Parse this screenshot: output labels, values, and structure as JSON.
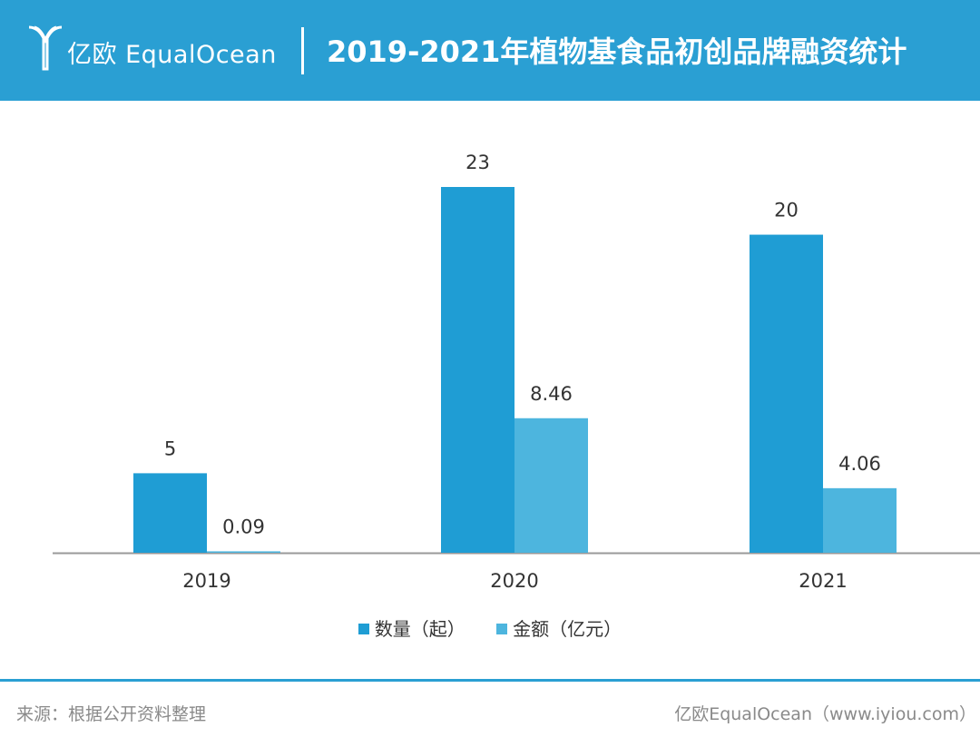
{
  "header": {
    "logo_text": "亿欧 EqualOcean",
    "title": "2019-2021年植物基食品初创品牌融资统计"
  },
  "colors": {
    "header_bg": "#2a9fd3",
    "series_count": "#1f9dd4",
    "series_amount": "#4db5de",
    "axis": "#999999"
  },
  "chart_data": {
    "type": "bar",
    "title": "2019-2021年植物基食品初创品牌融资统计",
    "categories": [
      "2019",
      "2020",
      "2021"
    ],
    "series": [
      {
        "name": "数量（起）",
        "values": [
          5,
          23,
          20
        ],
        "labels": [
          "5",
          "23",
          "20"
        ]
      },
      {
        "name": "金额（亿元）",
        "values": [
          0.09,
          8.46,
          4.06
        ],
        "labels": [
          "0.09",
          "8.46",
          "4.06"
        ]
      }
    ],
    "xlabel": "",
    "ylabel": "",
    "ylim": [
      0,
      23
    ],
    "grid": false,
    "legend_position": "bottom"
  },
  "legend": {
    "items": [
      "数量（起）",
      "金额（亿元）"
    ]
  },
  "footer": {
    "source": "来源：根据公开资料整理",
    "brand": "亿欧EqualOcean（www.iyiou.com）"
  }
}
